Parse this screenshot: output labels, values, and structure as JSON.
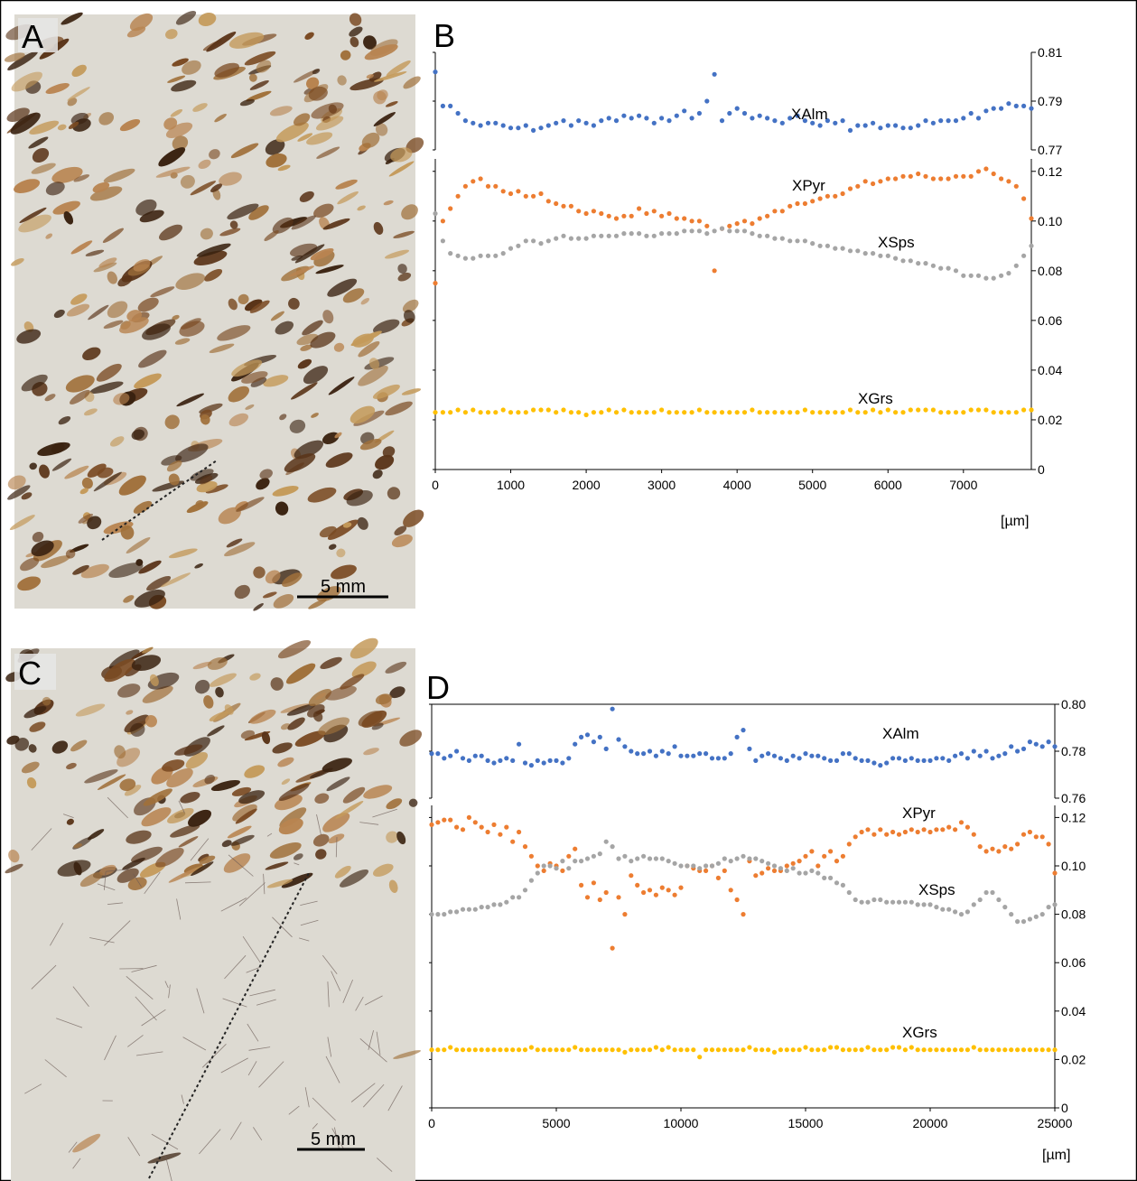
{
  "panel_letters": {
    "a": "A",
    "b": "B",
    "c": "C",
    "d": "D"
  },
  "scalebars": {
    "a": "5 mm",
    "c": "5 mm"
  },
  "chart_data": [
    {
      "type": "scatter",
      "panel": "B",
      "x_unit": "[µm]",
      "x": [
        0,
        100,
        200,
        300,
        400,
        500,
        600,
        700,
        800,
        900,
        1000,
        1100,
        1200,
        1300,
        1400,
        1500,
        1600,
        1700,
        1800,
        1900,
        2000,
        2100,
        2200,
        2300,
        2400,
        2500,
        2600,
        2700,
        2800,
        2900,
        3000,
        3100,
        3200,
        3300,
        3400,
        3500,
        3600,
        3700,
        3800,
        3900,
        4000,
        4100,
        4200,
        4300,
        4400,
        4500,
        4600,
        4700,
        4800,
        4900,
        5000,
        5100,
        5200,
        5300,
        5400,
        5500,
        5600,
        5700,
        5800,
        5900,
        6000,
        6100,
        6200,
        6300,
        6400,
        6500,
        6600,
        6700,
        6800,
        6900,
        7000,
        7100,
        7200,
        7300,
        7400,
        7500,
        7600,
        7700,
        7800,
        7900
      ],
      "xlim": [
        0,
        7900
      ],
      "xticks": [
        "0",
        "1000",
        "2000",
        "3000",
        "4000",
        "5000",
        "6000",
        "7000"
      ],
      "upper_axis": {
        "ylim": [
          0.77,
          0.81
        ],
        "ticks": [
          "0.77",
          "0.79",
          "0.81"
        ]
      },
      "lower_axis": {
        "ylim": [
          0,
          0.125
        ],
        "ticks": [
          "0",
          "0.02",
          "0.04",
          "0.06",
          "0.08",
          "0.10",
          "0.12"
        ]
      },
      "series": [
        {
          "name": "XAlm",
          "axis": "upper",
          "color": "#4472c4",
          "values": [
            0.802,
            0.788,
            0.788,
            0.785,
            0.782,
            0.781,
            0.78,
            0.781,
            0.781,
            0.78,
            0.779,
            0.779,
            0.78,
            0.778,
            0.779,
            0.78,
            0.781,
            0.782,
            0.78,
            0.782,
            0.781,
            0.78,
            0.782,
            0.783,
            0.782,
            0.784,
            0.783,
            0.784,
            0.783,
            0.781,
            0.783,
            0.782,
            0.784,
            0.786,
            0.783,
            0.785,
            0.79,
            0.801,
            0.782,
            0.785,
            0.787,
            0.785,
            0.783,
            0.784,
            0.783,
            0.782,
            0.781,
            0.783,
            0.784,
            0.782,
            0.781,
            0.78,
            0.782,
            0.781,
            0.782,
            0.778,
            0.78,
            0.78,
            0.781,
            0.779,
            0.78,
            0.78,
            0.779,
            0.779,
            0.78,
            0.782,
            0.781,
            0.782,
            0.782,
            0.782,
            0.783,
            0.785,
            0.783,
            0.786,
            0.787,
            0.787,
            0.789,
            0.788,
            0.788,
            0.787
          ]
        },
        {
          "name": "XPyr",
          "axis": "lower",
          "color": "#ed7d31",
          "values": [
            0.075,
            0.1,
            0.105,
            0.11,
            0.114,
            0.116,
            0.117,
            0.114,
            0.114,
            0.112,
            0.111,
            0.112,
            0.11,
            0.11,
            0.111,
            0.108,
            0.107,
            0.106,
            0.106,
            0.104,
            0.103,
            0.104,
            0.103,
            0.102,
            0.101,
            0.102,
            0.102,
            0.105,
            0.103,
            0.104,
            0.102,
            0.103,
            0.101,
            0.101,
            0.1,
            0.1,
            0.098,
            0.08,
            0.097,
            0.098,
            0.099,
            0.1,
            0.099,
            0.101,
            0.102,
            0.104,
            0.104,
            0.106,
            0.107,
            0.107,
            0.108,
            0.109,
            0.11,
            0.11,
            0.111,
            0.113,
            0.114,
            0.116,
            0.115,
            0.116,
            0.117,
            0.117,
            0.118,
            0.118,
            0.119,
            0.118,
            0.117,
            0.117,
            0.117,
            0.118,
            0.118,
            0.118,
            0.12,
            0.121,
            0.119,
            0.117,
            0.116,
            0.114,
            0.109,
            0.101
          ]
        },
        {
          "name": "XSps",
          "axis": "lower",
          "color": "#a5a5a5",
          "values": [
            0.103,
            0.092,
            0.087,
            0.086,
            0.085,
            0.085,
            0.086,
            0.086,
            0.086,
            0.087,
            0.089,
            0.09,
            0.092,
            0.092,
            0.091,
            0.092,
            0.093,
            0.094,
            0.093,
            0.093,
            0.093,
            0.094,
            0.094,
            0.094,
            0.094,
            0.095,
            0.095,
            0.095,
            0.094,
            0.094,
            0.095,
            0.095,
            0.095,
            0.096,
            0.096,
            0.096,
            0.095,
            0.096,
            0.097,
            0.096,
            0.096,
            0.096,
            0.095,
            0.094,
            0.094,
            0.093,
            0.093,
            0.092,
            0.092,
            0.092,
            0.091,
            0.09,
            0.09,
            0.089,
            0.089,
            0.088,
            0.088,
            0.087,
            0.087,
            0.086,
            0.086,
            0.085,
            0.084,
            0.084,
            0.083,
            0.083,
            0.082,
            0.081,
            0.081,
            0.08,
            0.078,
            0.078,
            0.078,
            0.077,
            0.077,
            0.078,
            0.079,
            0.082,
            0.086,
            0.09
          ]
        },
        {
          "name": "XGrs",
          "axis": "lower",
          "color": "#ffc000",
          "values": [
            0.023,
            0.023,
            0.023,
            0.024,
            0.023,
            0.024,
            0.023,
            0.023,
            0.023,
            0.024,
            0.023,
            0.023,
            0.023,
            0.024,
            0.024,
            0.024,
            0.023,
            0.024,
            0.023,
            0.023,
            0.022,
            0.023,
            0.023,
            0.024,
            0.023,
            0.024,
            0.023,
            0.023,
            0.023,
            0.023,
            0.024,
            0.023,
            0.023,
            0.023,
            0.023,
            0.024,
            0.023,
            0.023,
            0.023,
            0.023,
            0.023,
            0.023,
            0.024,
            0.023,
            0.023,
            0.023,
            0.023,
            0.023,
            0.023,
            0.024,
            0.023,
            0.023,
            0.023,
            0.023,
            0.023,
            0.024,
            0.023,
            0.023,
            0.024,
            0.023,
            0.024,
            0.023,
            0.023,
            0.024,
            0.024,
            0.024,
            0.024,
            0.023,
            0.023,
            0.023,
            0.023,
            0.024,
            0.024,
            0.024,
            0.023,
            0.023,
            0.023,
            0.023,
            0.024,
            0.024
          ]
        }
      ]
    },
    {
      "type": "scatter",
      "panel": "D",
      "x_unit": "[µm]",
      "x": [
        0,
        250,
        500,
        750,
        1000,
        1250,
        1500,
        1750,
        2000,
        2250,
        2500,
        2750,
        3000,
        3250,
        3500,
        3750,
        4000,
        4250,
        4500,
        4750,
        5000,
        5250,
        5500,
        5750,
        6000,
        6250,
        6500,
        6750,
        7000,
        7250,
        7500,
        7750,
        8000,
        8250,
        8500,
        8750,
        9000,
        9250,
        9500,
        9750,
        10000,
        10250,
        10500,
        10750,
        11000,
        11250,
        11500,
        11750,
        12000,
        12250,
        12500,
        12750,
        13000,
        13250,
        13500,
        13750,
        14000,
        14250,
        14500,
        14750,
        15000,
        15250,
        15500,
        15750,
        16000,
        16250,
        16500,
        16750,
        17000,
        17250,
        17500,
        17750,
        18000,
        18250,
        18500,
        18750,
        19000,
        19250,
        19500,
        19750,
        20000,
        20250,
        20500,
        20750,
        21000,
        21250,
        21500,
        21750,
        22000,
        22250,
        22500,
        22750,
        23000,
        23250,
        23500,
        23750,
        24000,
        24250,
        24500,
        24750,
        25000
      ],
      "xlim": [
        0,
        25000
      ],
      "xticks": [
        "0",
        "5000",
        "10000",
        "15000",
        "20000",
        "25000"
      ],
      "upper_axis": {
        "ylim": [
          0.76,
          0.8
        ],
        "ticks": [
          "0.76",
          "0.78",
          "0.80"
        ]
      },
      "lower_axis": {
        "ylim": [
          0,
          0.125
        ],
        "ticks": [
          "0",
          "0.02",
          "0.04",
          "0.06",
          "0.08",
          "0.10",
          "0.12"
        ]
      },
      "series": [
        {
          "name": "XAlm",
          "axis": "upper",
          "color": "#4472c4",
          "values": [
            0.779,
            0.779,
            0.777,
            0.778,
            0.78,
            0.777,
            0.776,
            0.778,
            0.778,
            0.776,
            0.775,
            0.776,
            0.777,
            0.776,
            0.783,
            0.775,
            0.774,
            0.776,
            0.775,
            0.776,
            0.776,
            0.775,
            0.777,
            0.783,
            0.786,
            0.787,
            0.784,
            0.786,
            0.781,
            0.798,
            0.785,
            0.782,
            0.78,
            0.779,
            0.779,
            0.78,
            0.778,
            0.78,
            0.779,
            0.782,
            0.778,
            0.778,
            0.778,
            0.779,
            0.779,
            0.777,
            0.777,
            0.777,
            0.779,
            0.786,
            0.789,
            0.781,
            0.776,
            0.778,
            0.779,
            0.778,
            0.777,
            0.776,
            0.778,
            0.777,
            0.779,
            0.778,
            0.778,
            0.777,
            0.776,
            0.776,
            0.779,
            0.779,
            0.777,
            0.776,
            0.776,
            0.775,
            0.774,
            0.775,
            0.777,
            0.777,
            0.776,
            0.777,
            0.776,
            0.776,
            0.776,
            0.777,
            0.777,
            0.776,
            0.778,
            0.779,
            0.777,
            0.78,
            0.778,
            0.78,
            0.777,
            0.778,
            0.779,
            0.782,
            0.78,
            0.781,
            0.784,
            0.783,
            0.782,
            0.784,
            0.782
          ]
        },
        {
          "name": "XPyr",
          "axis": "lower",
          "color": "#ed7d31",
          "values": [
            0.117,
            0.118,
            0.119,
            0.119,
            0.116,
            0.115,
            0.12,
            0.118,
            0.116,
            0.114,
            0.117,
            0.113,
            0.116,
            0.11,
            0.114,
            0.108,
            0.104,
            0.1,
            0.098,
            0.101,
            0.1,
            0.098,
            0.104,
            0.107,
            0.092,
            0.087,
            0.093,
            0.086,
            0.089,
            0.066,
            0.087,
            0.08,
            0.096,
            0.092,
            0.089,
            0.09,
            0.088,
            0.091,
            0.09,
            0.088,
            0.091,
            0.1,
            0.099,
            0.098,
            0.098,
            0.1,
            0.095,
            0.098,
            0.09,
            0.086,
            0.08,
            0.102,
            0.096,
            0.097,
            0.099,
            0.098,
            0.098,
            0.1,
            0.101,
            0.102,
            0.104,
            0.106,
            0.1,
            0.104,
            0.106,
            0.102,
            0.104,
            0.109,
            0.112,
            0.114,
            0.115,
            0.113,
            0.115,
            0.113,
            0.114,
            0.113,
            0.114,
            0.115,
            0.114,
            0.115,
            0.114,
            0.115,
            0.115,
            0.116,
            0.115,
            0.118,
            0.116,
            0.113,
            0.108,
            0.106,
            0.107,
            0.106,
            0.108,
            0.107,
            0.109,
            0.113,
            0.114,
            0.112,
            0.112,
            0.109,
            0.097
          ]
        },
        {
          "name": "XSps",
          "axis": "lower",
          "color": "#a5a5a5",
          "values": [
            0.08,
            0.08,
            0.08,
            0.081,
            0.081,
            0.082,
            0.082,
            0.082,
            0.083,
            0.083,
            0.084,
            0.084,
            0.085,
            0.087,
            0.087,
            0.09,
            0.094,
            0.097,
            0.1,
            0.1,
            0.099,
            0.102,
            0.099,
            0.102,
            0.102,
            0.103,
            0.104,
            0.105,
            0.11,
            0.108,
            0.103,
            0.104,
            0.102,
            0.103,
            0.104,
            0.103,
            0.103,
            0.103,
            0.102,
            0.101,
            0.1,
            0.1,
            0.1,
            0.099,
            0.1,
            0.1,
            0.101,
            0.103,
            0.102,
            0.103,
            0.104,
            0.103,
            0.103,
            0.102,
            0.101,
            0.1,
            0.099,
            0.098,
            0.099,
            0.097,
            0.097,
            0.098,
            0.097,
            0.095,
            0.095,
            0.093,
            0.092,
            0.089,
            0.086,
            0.085,
            0.085,
            0.086,
            0.086,
            0.085,
            0.085,
            0.085,
            0.085,
            0.085,
            0.084,
            0.084,
            0.084,
            0.083,
            0.082,
            0.082,
            0.081,
            0.08,
            0.081,
            0.084,
            0.086,
            0.089,
            0.089,
            0.086,
            0.083,
            0.08,
            0.077,
            0.077,
            0.078,
            0.079,
            0.08,
            0.083,
            0.084
          ]
        },
        {
          "name": "XGrs",
          "axis": "lower",
          "color": "#ffc000",
          "values": [
            0.024,
            0.024,
            0.024,
            0.025,
            0.024,
            0.024,
            0.024,
            0.024,
            0.024,
            0.024,
            0.024,
            0.024,
            0.024,
            0.024,
            0.024,
            0.024,
            0.025,
            0.024,
            0.024,
            0.024,
            0.024,
            0.024,
            0.024,
            0.025,
            0.024,
            0.024,
            0.024,
            0.024,
            0.024,
            0.024,
            0.024,
            0.023,
            0.024,
            0.024,
            0.024,
            0.024,
            0.025,
            0.024,
            0.025,
            0.024,
            0.024,
            0.024,
            0.024,
            0.021,
            0.024,
            0.024,
            0.024,
            0.024,
            0.024,
            0.024,
            0.024,
            0.025,
            0.024,
            0.024,
            0.024,
            0.023,
            0.024,
            0.024,
            0.024,
            0.024,
            0.025,
            0.024,
            0.024,
            0.024,
            0.025,
            0.025,
            0.024,
            0.024,
            0.024,
            0.024,
            0.025,
            0.024,
            0.024,
            0.024,
            0.025,
            0.025,
            0.024,
            0.025,
            0.024,
            0.024,
            0.024,
            0.024,
            0.024,
            0.024,
            0.024,
            0.024,
            0.024,
            0.025,
            0.024,
            0.024,
            0.024,
            0.024,
            0.024,
            0.024,
            0.024,
            0.024,
            0.024,
            0.024,
            0.024,
            0.024,
            0.024
          ]
        }
      ]
    }
  ]
}
